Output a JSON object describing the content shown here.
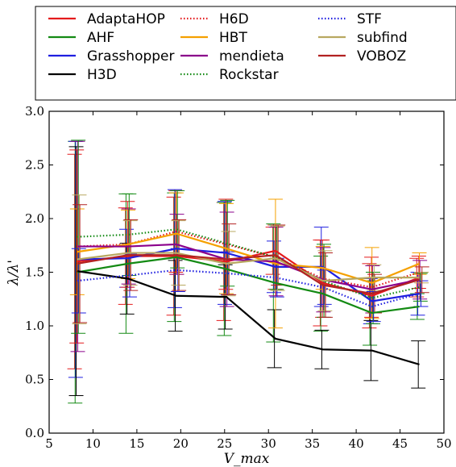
{
  "chart_data": {
    "type": "line",
    "title": "",
    "xlabel": "V_max",
    "ylabel": "λ/λ'",
    "xlim": [
      5,
      50
    ],
    "ylim": [
      0.0,
      3.0
    ],
    "xticks": [
      "5",
      "10",
      "15",
      "20",
      "25",
      "30",
      "35",
      "40",
      "45",
      "50"
    ],
    "yticks": [
      "0.0",
      "0.5",
      "1.0",
      "1.5",
      "2.0",
      "2.5",
      "3.0"
    ],
    "grid": false,
    "legend_position": "top (outside, above plot)",
    "x": [
      8.2,
      14.0,
      19.5,
      25.2,
      30.8,
      36.2,
      41.8,
      47.2
    ],
    "series": [
      {
        "name": "AdaptaHOP",
        "color": "#e41a1c",
        "style": "solid",
        "values": [
          1.6,
          1.65,
          1.65,
          1.6,
          1.7,
          1.4,
          1.28,
          1.45
        ],
        "err": [
          1.0,
          0.45,
          0.55,
          0.55,
          0.22,
          0.4,
          0.3,
          0.18
        ]
      },
      {
        "name": "AHF",
        "color": "#138a13",
        "style": "solid",
        "values": [
          1.5,
          1.58,
          1.64,
          1.53,
          1.4,
          1.3,
          1.12,
          1.18
        ],
        "err": [
          1.22,
          0.65,
          0.6,
          0.62,
          0.55,
          0.35,
          0.3,
          0.12
        ]
      },
      {
        "name": "Grasshopper",
        "color": "#1f1fe0",
        "style": "solid",
        "values": [
          1.62,
          1.63,
          1.72,
          1.68,
          1.55,
          1.55,
          1.23,
          1.3
        ],
        "err": [
          1.1,
          0.27,
          0.55,
          0.48,
          0.24,
          0.37,
          0.21,
          0.2
        ]
      },
      {
        "name": "H3D",
        "color": "#000000",
        "style": "solid",
        "values": [
          1.51,
          1.44,
          1.28,
          1.27,
          0.88,
          0.78,
          0.77,
          0.64
        ],
        "err": [
          1.16,
          0.33,
          0.33,
          0.3,
          0.27,
          0.18,
          0.28,
          0.22
        ]
      },
      {
        "name": "H6D",
        "color": "#e41a1c",
        "style": "dotted",
        "values": [
          1.74,
          1.76,
          1.88,
          1.76,
          1.64,
          1.44,
          1.36,
          1.5
        ],
        "err": [
          0.9,
          0.4,
          0.38,
          0.42,
          0.3,
          0.36,
          0.28,
          0.15
        ]
      },
      {
        "name": "HBT",
        "color": "#f5a000",
        "style": "solid",
        "values": [
          1.69,
          1.76,
          1.86,
          1.72,
          1.58,
          1.54,
          1.4,
          1.58
        ],
        "err": [
          0.4,
          0.32,
          0.38,
          0.42,
          0.6,
          0.2,
          0.33,
          0.1
        ]
      },
      {
        "name": "mendieta",
        "color": "#8b008b",
        "style": "solid",
        "values": [
          1.74,
          1.74,
          1.76,
          1.62,
          1.6,
          1.43,
          1.34,
          1.43
        ],
        "err": [
          0.98,
          0.35,
          0.28,
          0.44,
          0.32,
          0.3,
          0.22,
          0.18
        ]
      },
      {
        "name": "Rockstar",
        "color": "#138a13",
        "style": "dotted",
        "values": [
          1.83,
          1.85,
          1.9,
          1.77,
          1.64,
          1.42,
          1.26,
          1.36
        ],
        "err": [
          0.9,
          0.38,
          0.36,
          0.4,
          0.3,
          0.34,
          0.24,
          0.13
        ]
      },
      {
        "name": "STF",
        "color": "#1f1fe0",
        "style": "dotted",
        "values": [
          1.42,
          1.47,
          1.52,
          1.49,
          1.45,
          1.36,
          1.18,
          1.3
        ],
        "err": [
          0.3,
          0.2,
          0.2,
          0.2,
          0.18,
          0.16,
          0.14,
          0.12
        ]
      },
      {
        "name": "subfind",
        "color": "#b8a860",
        "style": "solid",
        "values": [
          1.62,
          1.68,
          1.68,
          1.58,
          1.63,
          1.42,
          1.45,
          1.45
        ],
        "err": [
          0.6,
          0.3,
          0.3,
          0.3,
          0.3,
          0.28,
          0.12,
          0.05
        ]
      },
      {
        "name": "VOBOZ",
        "color": "#b22222",
        "style": "solid",
        "values": [
          1.58,
          1.66,
          1.66,
          1.62,
          1.66,
          1.38,
          1.3,
          1.43
        ],
        "err": [
          0.55,
          0.33,
          0.33,
          0.33,
          0.28,
          0.3,
          0.18,
          0.12
        ]
      }
    ]
  }
}
